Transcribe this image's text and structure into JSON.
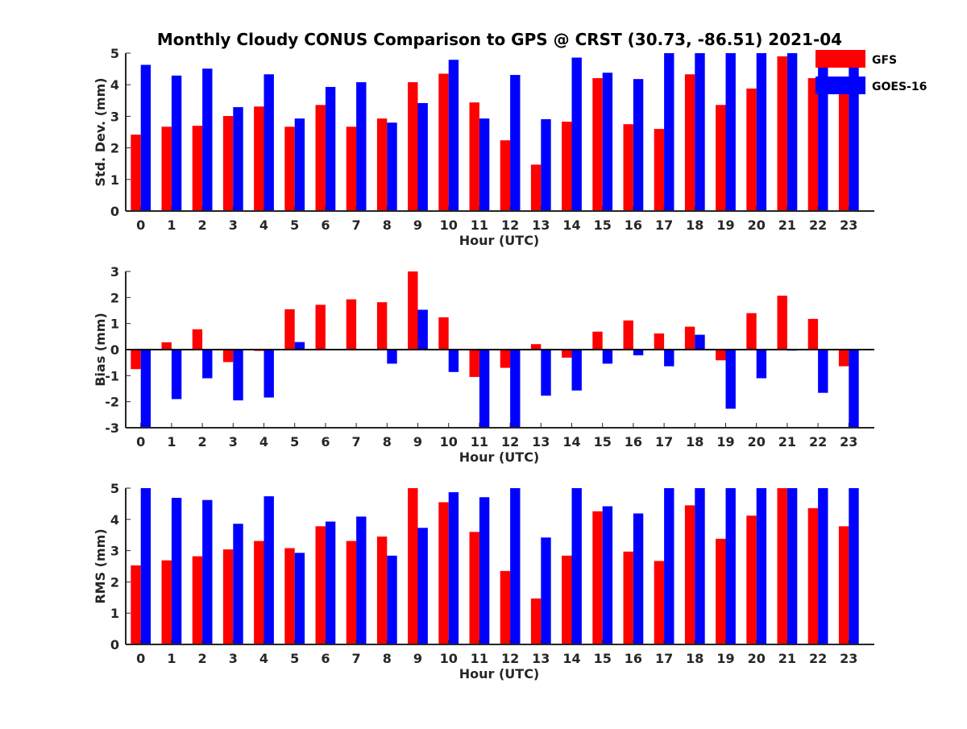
{
  "title": "Monthly Cloudy CONUS Comparison to GPS @ CRST (30.73, -86.51) 2021-04",
  "legend": [
    {
      "name": "GFS",
      "color": "#ff0000"
    },
    {
      "name": "GOES-16",
      "color": "#0000ff"
    }
  ],
  "colors": {
    "series1": "#ff0000",
    "series2": "#0000ff",
    "axis": "#262626"
  },
  "chart_data": [
    {
      "type": "bar",
      "xlabel": "Hour (UTC)",
      "ylabel": "Std. Dev. (mm)",
      "ylim": [
        0,
        5
      ],
      "yticks": [
        0,
        1,
        2,
        3,
        4,
        5
      ],
      "categories": [
        "0",
        "1",
        "2",
        "3",
        "4",
        "5",
        "6",
        "7",
        "8",
        "9",
        "10",
        "11",
        "12",
        "13",
        "14",
        "15",
        "16",
        "17",
        "18",
        "19",
        "20",
        "21",
        "22",
        "23"
      ],
      "series": [
        {
          "name": "GFS",
          "values": [
            2.42,
            2.67,
            2.7,
            3.01,
            3.31,
            2.67,
            3.36,
            2.67,
            2.93,
            4.08,
            4.35,
            3.44,
            2.24,
            1.47,
            2.83,
            4.21,
            2.75,
            2.6,
            4.33,
            3.36,
            3.88,
            4.9,
            4.21,
            3.72
          ]
        },
        {
          "name": "GOES-16",
          "values": [
            4.63,
            4.29,
            4.51,
            3.29,
            4.33,
            2.93,
            3.93,
            4.08,
            2.8,
            3.42,
            4.79,
            2.93,
            4.31,
            2.91,
            4.86,
            4.38,
            4.18,
            5.0,
            5.0,
            5.0,
            5.0,
            5.0,
            5.0,
            5.0
          ]
        }
      ]
    },
    {
      "type": "bar",
      "xlabel": "Hour (UTC)",
      "ylabel": "Bias (mm)",
      "ylim": [
        -3,
        3
      ],
      "yticks": [
        -3,
        -2,
        -1,
        0,
        1,
        2,
        3
      ],
      "categories": [
        "0",
        "1",
        "2",
        "3",
        "4",
        "5",
        "6",
        "7",
        "8",
        "9",
        "10",
        "11",
        "12",
        "13",
        "14",
        "15",
        "16",
        "17",
        "18",
        "19",
        "20",
        "21",
        "22",
        "23"
      ],
      "series": [
        {
          "name": "GFS",
          "values": [
            -0.75,
            0.28,
            0.78,
            -0.48,
            -0.05,
            1.55,
            1.72,
            1.93,
            1.82,
            3.0,
            1.24,
            -1.05,
            -0.7,
            0.21,
            -0.31,
            0.69,
            1.12,
            0.62,
            0.88,
            -0.41,
            1.4,
            2.07,
            1.18,
            -0.64
          ]
        },
        {
          "name": "GOES-16",
          "values": [
            -3.0,
            -1.9,
            -1.1,
            -1.95,
            -1.84,
            0.29,
            0.0,
            0.0,
            -0.54,
            1.53,
            -0.86,
            -3.0,
            -3.0,
            -1.77,
            -1.57,
            -0.54,
            -0.22,
            -0.64,
            0.57,
            -2.27,
            -1.1,
            -0.04,
            -1.66,
            -3.0
          ]
        }
      ]
    },
    {
      "type": "bar",
      "xlabel": "Hour (UTC)",
      "ylabel": "RMS (mm)",
      "ylim": [
        0,
        5
      ],
      "yticks": [
        0,
        1,
        2,
        3,
        4,
        5
      ],
      "categories": [
        "0",
        "1",
        "2",
        "3",
        "4",
        "5",
        "6",
        "7",
        "8",
        "9",
        "10",
        "11",
        "12",
        "13",
        "14",
        "15",
        "16",
        "17",
        "18",
        "19",
        "20",
        "21",
        "22",
        "23"
      ],
      "series": [
        {
          "name": "GFS",
          "values": [
            2.53,
            2.69,
            2.82,
            3.04,
            3.31,
            3.08,
            3.78,
            3.31,
            3.45,
            5.0,
            4.55,
            3.6,
            2.35,
            1.47,
            2.84,
            4.26,
            2.97,
            2.67,
            4.45,
            3.38,
            4.12,
            5.0,
            4.36,
            3.78
          ]
        },
        {
          "name": "GOES-16",
          "values": [
            5.0,
            4.69,
            4.62,
            3.86,
            4.74,
            2.93,
            3.93,
            4.09,
            2.84,
            3.73,
            4.87,
            4.71,
            5.0,
            3.42,
            5.0,
            4.42,
            4.19,
            5.0,
            5.0,
            5.0,
            5.0,
            5.0,
            5.0,
            5.0
          ]
        }
      ]
    }
  ]
}
